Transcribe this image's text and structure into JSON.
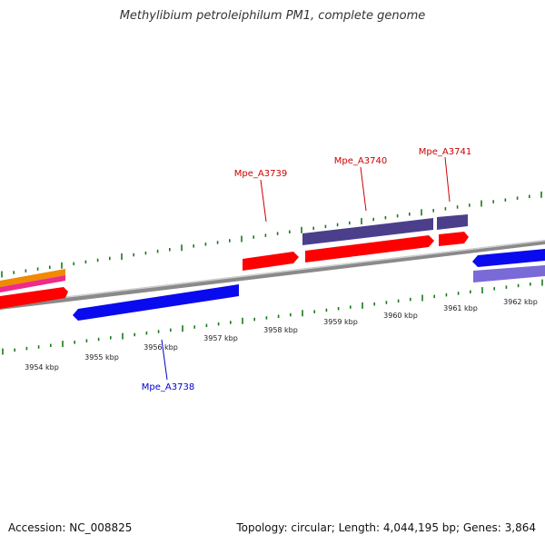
{
  "title": "Methylibium petroleiphilum PM1, complete genome",
  "footer": {
    "accession": "Accession: NC_008825",
    "summary": "Topology: circular; Length: 4,044,195 bp; Genes: 3,864"
  },
  "colors": {
    "background": "#ffffff",
    "backbone": "#8a8a8a",
    "tick": "#1a7a1a",
    "gene_red": "#ff0000",
    "gene_blue": "#0a0aee",
    "gene_slate": "#4b3f8c",
    "gene_lavender": "#7a6ad8",
    "gene_pink": "#ee2a8a",
    "gene_orange": "#f08a00",
    "label_red": "#cc0000",
    "label_blue": "#0000cc"
  },
  "axis_labels": [
    "3954 kbp",
    "3955 kbp",
    "3956 kbp",
    "3957 kbp",
    "3958 kbp",
    "3959 kbp",
    "3960 kbp",
    "3961 kbp",
    "3962 kbp"
  ],
  "gene_labels": [
    {
      "text": "Mpe_A3738",
      "color": "label_blue"
    },
    {
      "text": "Mpe_A3739",
      "color": "label_red"
    },
    {
      "text": "Mpe_A3740",
      "color": "label_red"
    },
    {
      "text": "Mpe_A3741",
      "color": "label_red"
    }
  ]
}
